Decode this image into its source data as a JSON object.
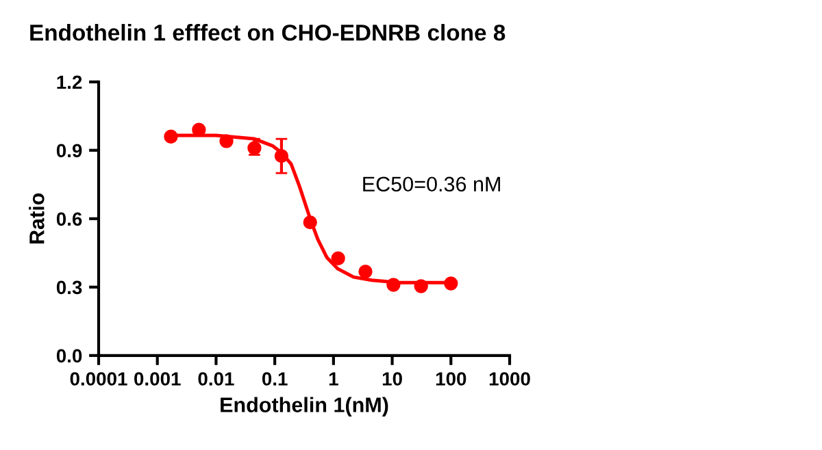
{
  "chart_data": {
    "type": "scatter",
    "title": "Endothelin 1 efffect on CHO-EDNRB clone 8",
    "xlabel": "Endothelin 1(nM)",
    "ylabel": "Ratio",
    "log": "x",
    "xlim": [
      0.0001,
      1000
    ],
    "xticks": [
      0.0001,
      0.001,
      0.01,
      0.1,
      1,
      10,
      100,
      1000
    ],
    "ylim": [
      0,
      1.2
    ],
    "yticks": [
      {
        "value": 0,
        "label": "0.0"
      },
      0.3,
      0.6,
      0.9,
      1.2
    ],
    "grid": false,
    "legend": false,
    "annotations": [
      "EC50=0.36 nM"
    ],
    "series": [
      {
        "marker": "circle",
        "color": "#ff0000",
        "x": [
          0.0017,
          0.0051,
          0.015,
          0.045,
          0.13,
          0.4,
          1.2,
          3.5,
          10.5,
          31,
          100
        ],
        "values": [
          0.96,
          0.99,
          0.94,
          0.91,
          0.875,
          0.584,
          0.426,
          0.368,
          0.31,
          0.304,
          0.316
        ],
        "errors": [
          null,
          null,
          null,
          [
            0.88,
            0.95
          ],
          [
            0.8,
            0.95
          ],
          null,
          null,
          null,
          null,
          null,
          null
        ]
      },
      {
        "type": "line",
        "color": "#ff0000",
        "line_style": "solid",
        "x": [
          0.0017,
          0.01,
          0.045,
          0.091,
          0.13,
          0.19,
          0.265,
          0.4,
          0.54,
          0.77,
          1.19,
          2.2,
          4.5,
          13,
          100
        ],
        "values": [
          0.965,
          0.965,
          0.95,
          0.92,
          0.89,
          0.84,
          0.74,
          0.6,
          0.51,
          0.43,
          0.38,
          0.344,
          0.33,
          0.32,
          0.32
        ]
      }
    ]
  }
}
